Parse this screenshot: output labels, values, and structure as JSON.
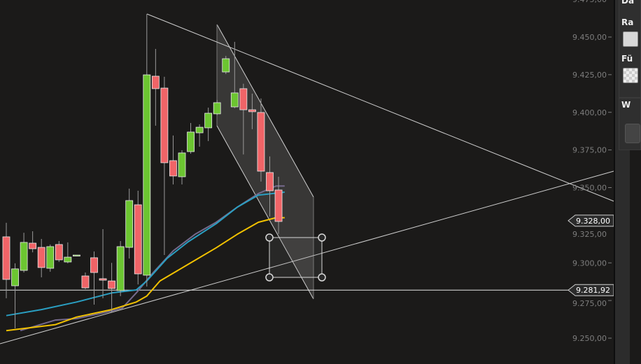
{
  "chart_data": {
    "type": "candlestick",
    "ylim": [
      9245,
      9475
    ],
    "y_ticks": [
      9475,
      9450,
      9425,
      9400,
      9375,
      9350,
      9325,
      9300,
      9275,
      9250
    ],
    "y_tick_labels": [
      "9.475,00",
      "9.450,00",
      "9.425,00",
      "9.400,00",
      "9.375,00",
      "9.350,00",
      "9.325,00",
      "9.300,00",
      "9.275,00",
      "9.250,00"
    ],
    "grid": false,
    "colors": {
      "up": "#6cc531",
      "down": "#f06467",
      "ma_purple": "#756a8c",
      "ma_blue": "#2a9fc2",
      "ma_yellow": "#f2c200",
      "background": "#1b1a19"
    },
    "candles": [
      {
        "o": 9317.3,
        "h": 9326.6,
        "l": 9276.5,
        "c": 9289.0
      },
      {
        "o": 9284.8,
        "h": 9299.7,
        "l": 9256.5,
        "c": 9296.0
      },
      {
        "o": 9295.0,
        "h": 9320.0,
        "l": 9293.6,
        "c": 9313.6
      },
      {
        "o": 9313.1,
        "h": 9321.0,
        "l": 9307.0,
        "c": 9309.4
      },
      {
        "o": 9310.3,
        "h": 9315.9,
        "l": 9290.4,
        "c": 9296.9
      },
      {
        "o": 9296.4,
        "h": 9312.2,
        "l": 9294.1,
        "c": 9310.8
      },
      {
        "o": 9312.2,
        "h": 9314.5,
        "l": 9300.6,
        "c": 9302.0
      },
      {
        "o": 9300.6,
        "h": 9313.6,
        "l": 9299.7,
        "c": 9303.8
      },
      {
        "o": 9305.2,
        "h": 9305.2,
        "l": 9305.2,
        "c": 9305.2
      },
      {
        "o": 9291.3,
        "h": 9293.6,
        "l": 9282.5,
        "c": 9283.4
      },
      {
        "o": 9303.4,
        "h": 9307.6,
        "l": 9272.3,
        "c": 9293.6
      },
      {
        "o": 9289.5,
        "h": 9322.4,
        "l": 9276.5,
        "c": 9288.5
      },
      {
        "o": 9288.0,
        "h": 9300.0,
        "l": 9267.2,
        "c": 9283.0
      },
      {
        "o": 9281.6,
        "h": 9314.5,
        "l": 9277.9,
        "c": 9310.8
      },
      {
        "o": 9310.3,
        "h": 9349.3,
        "l": 9302.9,
        "c": 9341.4
      },
      {
        "o": 9338.6,
        "h": 9347.9,
        "l": 9285.7,
        "c": 9292.7
      },
      {
        "o": 9291.8,
        "h": 9465.3,
        "l": 9284.3,
        "c": 9424.9
      },
      {
        "o": 9424.0,
        "h": 9442.1,
        "l": 9391.1,
        "c": 9415.7
      },
      {
        "o": 9416.1,
        "h": 9423.6,
        "l": 9305.2,
        "c": 9366.5
      },
      {
        "o": 9367.9,
        "h": 9384.6,
        "l": 9352.1,
        "c": 9357.7
      },
      {
        "o": 9357.2,
        "h": 9374.8,
        "l": 9352.1,
        "c": 9373.0
      },
      {
        "o": 9373.9,
        "h": 9392.9,
        "l": 9372.5,
        "c": 9386.9
      },
      {
        "o": 9386.4,
        "h": 9392.0,
        "l": 9377.2,
        "c": 9390.1
      },
      {
        "o": 9389.7,
        "h": 9403.1,
        "l": 9380.9,
        "c": 9399.4
      },
      {
        "o": 9399.0,
        "h": 9408.2,
        "l": 9398.0,
        "c": 9406.4
      },
      {
        "o": 9426.8,
        "h": 9437.5,
        "l": 9425.4,
        "c": 9435.6
      },
      {
        "o": 9403.6,
        "h": 9446.8,
        "l": 9402.7,
        "c": 9412.9
      },
      {
        "o": 9415.7,
        "h": 9419.0,
        "l": 9372.0,
        "c": 9401.7
      },
      {
        "o": 9401.7,
        "h": 9412.4,
        "l": 9388.8,
        "c": 9400.4
      },
      {
        "o": 9399.9,
        "h": 9409.2,
        "l": 9354.0,
        "c": 9360.9
      },
      {
        "o": 9360.0,
        "h": 9370.7,
        "l": 9330.8,
        "c": 9347.9
      },
      {
        "o": 9348.4,
        "h": 9357.2,
        "l": 9319.2,
        "c": 9327.5
      }
    ],
    "moving_averages": [
      {
        "color": "#756a8c",
        "points": [
          [
            1.6,
            9255
          ],
          [
            5.6,
            9262
          ],
          [
            8,
            9263
          ],
          [
            12,
            9268
          ],
          [
            13.2,
            9270
          ],
          [
            14.8,
            9280
          ],
          [
            16.8,
            9294
          ],
          [
            19,
            9308
          ],
          [
            21.5,
            9319
          ],
          [
            23.9,
            9327
          ],
          [
            26.3,
            9337
          ],
          [
            28.7,
            9346
          ],
          [
            30.7,
            9351
          ],
          [
            31.7,
            9351
          ]
        ]
      },
      {
        "color": "#2a9fc2",
        "points": [
          [
            0,
            9265
          ],
          [
            4,
            9269
          ],
          [
            8,
            9274
          ],
          [
            12,
            9280
          ],
          [
            14.8,
            9282
          ],
          [
            16,
            9288
          ],
          [
            18.3,
            9303
          ],
          [
            20.7,
            9314
          ],
          [
            23.9,
            9326
          ],
          [
            26.3,
            9337
          ],
          [
            28.7,
            9345
          ],
          [
            31.7,
            9347
          ]
        ]
      },
      {
        "color": "#f2c200",
        "points": [
          [
            0,
            9255
          ],
          [
            5.6,
            9259
          ],
          [
            8,
            9264
          ],
          [
            12,
            9269
          ],
          [
            14.8,
            9274
          ],
          [
            16,
            9278
          ],
          [
            17.5,
            9288
          ],
          [
            20.7,
            9299
          ],
          [
            23.9,
            9310
          ],
          [
            26.3,
            9319
          ],
          [
            28.7,
            9327
          ],
          [
            30.7,
            9330
          ],
          [
            31.7,
            9330
          ]
        ]
      }
    ],
    "price_labels": [
      {
        "value": 9328.0,
        "label": "9.328,00"
      },
      {
        "value": 9281.92,
        "label": "9.281,92"
      }
    ]
  },
  "side_panel": {
    "label_1": "Da",
    "label_2": "Ra",
    "label_3": "Fü",
    "label_4": "W"
  }
}
